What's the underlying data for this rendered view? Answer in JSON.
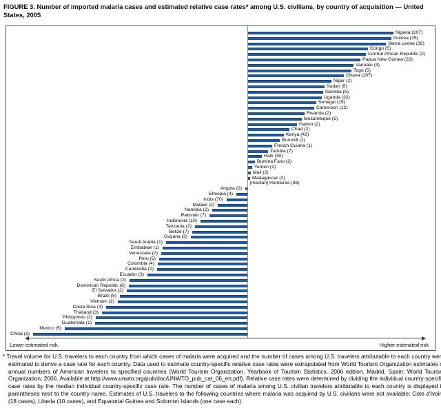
{
  "title": "FIGURE 3. Number of imported malaria cases and estimated relative case rates* among U.S. civilians, by country of acquisition — United States, 2005",
  "axis": {
    "lower_label": "Lower estimated risk",
    "higher_label": "Higher estimated risk"
  },
  "footnote": "* Travel volume for U.S. travelers to each country from which cases of malaria were acquired and the number of cases among U.S. travelers attributable to each country were estimated to derive a case rate for each country. Data used to estimate country-specific relative case rates were extrapolated from World Tourism Organization estimates of annual numbers of American travelers to specified countries (World Tourism Organization. Yearbook of Tourism Statistics. 2006 edition. Madrid, Spain: World Tourism Organization; 2006. Available at http://www.unwto.org/pub/doc/UNWTO_pub_cat_06_en.pdf). Relative case rates were determined by dividing the individual country-specific case rates by the median individual country-specific case rate. The number of cases of malaria among U.S. civilian travelers attributable to each country is displayed in parentheses next to the country name. Estimates of U.S. travelers to the following countries where malaria was acquired by U.S. civilians were not available: Cote d'Ivoire (18 cases), Liberia (10 cases), and Equatorial Guinea and Solomon Islands (one case each).",
  "colors": {
    "bar": "#1d5ba6",
    "bar_edge": "#143f78",
    "box_border": "#4a4a4a",
    "centerline": "#8f8f8f",
    "arrow": "#3a3a3a"
  },
  "chart_data": {
    "type": "bar",
    "orientation": "horizontal-diverging",
    "title": "Number of imported malaria cases and estimated relative case rates among U.S. civilians, by country of acquisition — United States, 2005",
    "legend_position": "none",
    "grid": false,
    "countries": [
      {
        "label": "Nigeria (207)",
        "name": "Nigeria",
        "cases": 207,
        "side": "right",
        "len": 211
      },
      {
        "label": "Guinea (25)",
        "name": "Guinea",
        "cases": 25,
        "side": "right",
        "len": 208
      },
      {
        "label": "Sierra Leone (35)",
        "name": "Sierra Leone",
        "cases": 35,
        "side": "right",
        "len": 200
      },
      {
        "label": "Congo (5)",
        "name": "Congo",
        "cases": 5,
        "side": "right",
        "len": 174
      },
      {
        "label": "Central African Republic (2)",
        "name": "Central African Republic",
        "cases": 2,
        "side": "right",
        "len": 171
      },
      {
        "label": "Papua New Guinea (22)",
        "name": "Papua New Guinea",
        "cases": 22,
        "side": "right",
        "len": 163
      },
      {
        "label": "Vanuatu (4)",
        "name": "Vanuatu",
        "cases": 4,
        "side": "right",
        "len": 153
      },
      {
        "label": "Togo (5)",
        "name": "Togo",
        "cases": 5,
        "side": "right",
        "len": 150
      },
      {
        "label": "Ghana (107)",
        "name": "Ghana",
        "cases": 107,
        "side": "right",
        "len": 139
      },
      {
        "label": "Niger (2)",
        "name": "Niger",
        "cases": 2,
        "side": "right",
        "len": 121
      },
      {
        "label": "Sudan (5)",
        "name": "Sudan",
        "cases": 5,
        "side": "right",
        "len": 111
      },
      {
        "label": "Gambia (5)",
        "name": "Gambia",
        "cases": 5,
        "side": "right",
        "len": 109
      },
      {
        "label": "Uganda (32)",
        "name": "Uganda",
        "cases": 32,
        "side": "right",
        "len": 107
      },
      {
        "label": "Senegal (15)",
        "name": "Senegal",
        "cases": 15,
        "side": "right",
        "len": 99
      },
      {
        "label": "Cameroon (12)",
        "name": "Cameroon",
        "cases": 12,
        "side": "right",
        "len": 96
      },
      {
        "label": "Rwanda (2)",
        "name": "Rwanda",
        "cases": 2,
        "side": "right",
        "len": 82
      },
      {
        "label": "Mozambique (5)",
        "name": "Mozambique",
        "cases": 5,
        "side": "right",
        "len": 78
      },
      {
        "label": "Gabon (2)",
        "name": "Gabon",
        "cases": 2,
        "side": "right",
        "len": 71
      },
      {
        "label": "Chad (2)",
        "name": "Chad",
        "cases": 2,
        "side": "right",
        "len": 60
      },
      {
        "label": "Kenya (43)",
        "name": "Kenya",
        "cases": 43,
        "side": "right",
        "len": 52
      },
      {
        "label": "Burundi (1)",
        "name": "Burundi",
        "cases": 1,
        "side": "right",
        "len": 46
      },
      {
        "label": "French Guiana (1)",
        "name": "French Guiana",
        "cases": 1,
        "side": "right",
        "len": 35
      },
      {
        "label": "Zambia (7)",
        "name": "Zambia",
        "cases": 7,
        "side": "right",
        "len": 29
      },
      {
        "label": "Haiti (30)",
        "name": "Haiti",
        "cases": 30,
        "side": "right",
        "len": 20
      },
      {
        "label": "Burkina Faso (2)",
        "name": "Burkina Faso",
        "cases": 2,
        "side": "right",
        "len": 10
      },
      {
        "label": "Yemen (1)",
        "name": "Yemen",
        "cases": 1,
        "side": "right",
        "len": 6
      },
      {
        "label": "Mali (2)",
        "name": "Mali",
        "cases": 2,
        "side": "right",
        "len": 4
      },
      {
        "label": "Madagascar (2)",
        "name": "Madagascar",
        "cases": 2,
        "side": "right",
        "len": 3
      },
      {
        "label": "[median] Honduras (36)",
        "name": "Honduras",
        "cases": 36,
        "side": "right",
        "len": 0,
        "median": true
      },
      {
        "label": "Angola (2)",
        "name": "Angola",
        "cases": 2,
        "side": "left",
        "len": 3
      },
      {
        "label": "Ethiopia (4)",
        "name": "Ethiopia",
        "cases": 4,
        "side": "left",
        "len": 16
      },
      {
        "label": "India (70)",
        "name": "India",
        "cases": 70,
        "side": "left",
        "len": 30
      },
      {
        "label": "Malawi (2)",
        "name": "Malawi",
        "cases": 2,
        "side": "left",
        "len": 43
      },
      {
        "label": "Namibia (1)",
        "name": "Namibia",
        "cases": 1,
        "side": "left",
        "len": 51
      },
      {
        "label": "Pakistan (7)",
        "name": "Pakistan",
        "cases": 7,
        "side": "left",
        "len": 55
      },
      {
        "label": "Indonesia (10)",
        "name": "Indonesia",
        "cases": 10,
        "side": "left",
        "len": 68
      },
      {
        "label": "Tanzania (2)",
        "name": "Tanzania",
        "cases": 2,
        "side": "left",
        "len": 76
      },
      {
        "label": "Belize (7)",
        "name": "Belize",
        "cases": 7,
        "side": "left",
        "len": 80
      },
      {
        "label": "Guyana (3)",
        "name": "Guyana",
        "cases": 3,
        "side": "left",
        "len": 82
      },
      {
        "label": "Saudi Arabia (1)",
        "name": "Saudi Arabia",
        "cases": 1,
        "side": "left",
        "len": 118
      },
      {
        "label": "Zimbabwe (1)",
        "name": "Zimbabwe",
        "cases": 1,
        "side": "left",
        "len": 123
      },
      {
        "label": "Venezuela (2)",
        "name": "Venezuela",
        "cases": 2,
        "side": "left",
        "len": 125
      },
      {
        "label": "Peru (5)",
        "name": "Peru",
        "cases": 5,
        "side": "left",
        "len": 128
      },
      {
        "label": "Colombia (4)",
        "name": "Colombia",
        "cases": 4,
        "side": "left",
        "len": 130
      },
      {
        "label": "Cambodia (2)",
        "name": "Cambodia",
        "cases": 2,
        "side": "left",
        "len": 131
      },
      {
        "label": "Ecuador (3)",
        "name": "Ecuador",
        "cases": 3,
        "side": "left",
        "len": 145
      },
      {
        "label": "South Africa (2)",
        "name": "South Africa",
        "cases": 2,
        "side": "left",
        "len": 171
      },
      {
        "label": "Dominican Republic (8)",
        "name": "Dominican Republic",
        "cases": 8,
        "side": "left",
        "len": 172
      },
      {
        "label": "El Salvador (2)",
        "name": "El Salvador",
        "cases": 2,
        "side": "left",
        "len": 175
      },
      {
        "label": "Brazil (5)",
        "name": "Brazil",
        "cases": 5,
        "side": "left",
        "len": 185
      },
      {
        "label": "Vietnam (2)",
        "name": "Vietnam",
        "cases": 2,
        "side": "left",
        "len": 188
      },
      {
        "label": "Costa Rica (4)",
        "name": "Costa Rica",
        "cases": 4,
        "side": "left",
        "len": 205
      },
      {
        "label": "Thailand (3)",
        "name": "Thailand",
        "cases": 3,
        "side": "left",
        "len": 211
      },
      {
        "label": "Philippines (2)",
        "name": "Philippines",
        "cases": 2,
        "side": "left",
        "len": 220
      },
      {
        "label": "Guatemala (1)",
        "name": "Guatemala",
        "cases": 1,
        "side": "left",
        "len": 221
      },
      {
        "label": "Mexico (5)",
        "name": "Mexico",
        "cases": 5,
        "side": "left",
        "len": 265
      },
      {
        "label": "China (1)",
        "name": "China",
        "cases": 1,
        "side": "left",
        "len": 311
      }
    ]
  }
}
